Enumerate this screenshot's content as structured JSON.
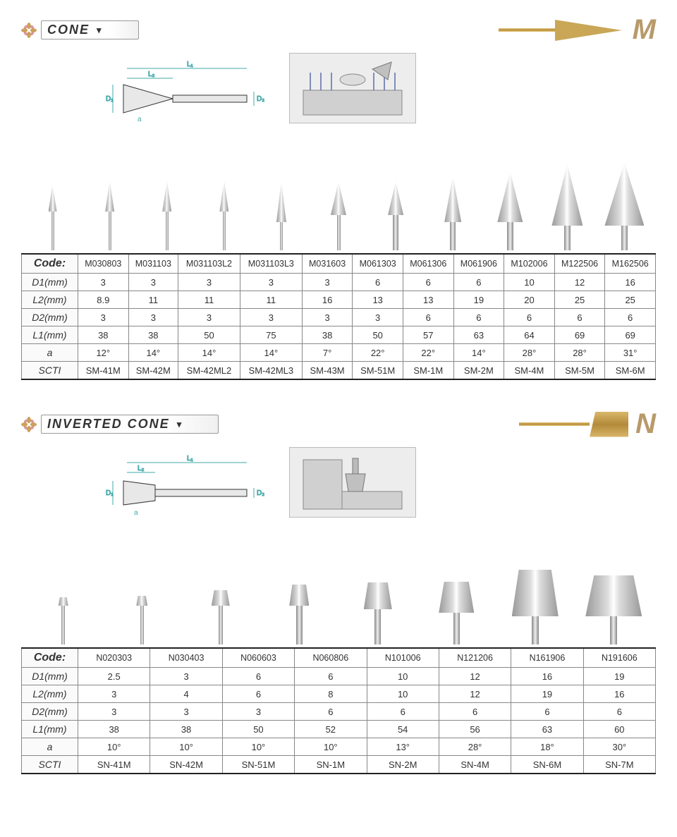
{
  "cone": {
    "title": "CONE",
    "letter": "M",
    "letter_color": "#b89a6a",
    "row_labels": [
      "Code:",
      "D1(mm)",
      "L2(mm)",
      "D2(mm)",
      "L1(mm)",
      "a",
      "SCTI"
    ],
    "dim_labels": {
      "L1": "L₁",
      "L2": "L₂",
      "D1": "D₁",
      "D2": "D₂",
      "a": "a"
    },
    "columns": [
      {
        "code": "M030803",
        "d1": "3",
        "l2": "8.9",
        "d2": "3",
        "l1": "38",
        "a": "12°",
        "scti": "SM-41M",
        "head_w": 12,
        "head_h": 38,
        "shank_w": 4,
        "shank_h": 55
      },
      {
        "code": "M031103",
        "d1": "3",
        "l2": "11",
        "d2": "3",
        "l1": "38",
        "a": "14°",
        "scti": "SM-42M",
        "head_w": 13,
        "head_h": 44,
        "shank_w": 4,
        "shank_h": 55
      },
      {
        "code": "M031103L2",
        "d1": "3",
        "l2": "11",
        "d2": "3",
        "l1": "50",
        "a": "14°",
        "scti": "SM-42ML2",
        "head_w": 13,
        "head_h": 44,
        "shank_w": 4,
        "shank_h": 55
      },
      {
        "code": "M031103L3",
        "d1": "3",
        "l2": "11",
        "d2": "3",
        "l1": "75",
        "a": "14°",
        "scti": "SM-42ML3",
        "head_w": 13,
        "head_h": 44,
        "shank_w": 4,
        "shank_h": 55
      },
      {
        "code": "M031603",
        "d1": "3",
        "l2": "16",
        "d2": "3",
        "l1": "38",
        "a": "7°",
        "scti": "SM-43M",
        "head_w": 14,
        "head_h": 58,
        "shank_w": 4,
        "shank_h": 40
      },
      {
        "code": "M061303",
        "d1": "6",
        "l2": "13",
        "d2": "3",
        "l1": "50",
        "a": "22°",
        "scti": "SM-51M",
        "head_w": 22,
        "head_h": 48,
        "shank_w": 5,
        "shank_h": 50
      },
      {
        "code": "M061306",
        "d1": "6",
        "l2": "13",
        "d2": "6",
        "l1": "57",
        "a": "22°",
        "scti": "SM-1M",
        "head_w": 22,
        "head_h": 48,
        "shank_w": 8,
        "shank_h": 50
      },
      {
        "code": "M061906",
        "d1": "6",
        "l2": "19",
        "d2": "6",
        "l1": "63",
        "a": "14°",
        "scti": "SM-2M",
        "head_w": 24,
        "head_h": 66,
        "shank_w": 8,
        "shank_h": 40
      },
      {
        "code": "M102006",
        "d1": "10",
        "l2": "20",
        "d2": "6",
        "l1": "64",
        "a": "28°",
        "scti": "SM-4M",
        "head_w": 36,
        "head_h": 72,
        "shank_w": 9,
        "shank_h": 40
      },
      {
        "code": "M122506",
        "d1": "12",
        "l2": "25",
        "d2": "6",
        "l1": "69",
        "a": "28°",
        "scti": "SM-5M",
        "head_w": 44,
        "head_h": 88,
        "shank_w": 9,
        "shank_h": 35
      },
      {
        "code": "M162506",
        "d1": "16",
        "l2": "25",
        "d2": "6",
        "l1": "69",
        "a": "31°",
        "scti": "SM-6M",
        "head_w": 56,
        "head_h": 90,
        "shank_w": 9,
        "shank_h": 35
      }
    ]
  },
  "invcone": {
    "title": "INVERTED CONE",
    "letter": "N",
    "letter_color": "#b89a6a",
    "row_labels": [
      "Code:",
      "D1(mm)",
      "L2(mm)",
      "D2(mm)",
      "L1(mm)",
      "a",
      "SCTI"
    ],
    "dim_labels": {
      "L1": "L₁",
      "L2": "L₂",
      "D1": "D₁",
      "D2": "D₂",
      "a": "a"
    },
    "columns": [
      {
        "code": "N020303",
        "d1": "2.5",
        "l2": "3",
        "d2": "3",
        "l1": "38",
        "a": "10°",
        "scti": "SN-41M",
        "head_w": 14,
        "head_h": 12,
        "shank_w": 5,
        "shank_h": 55
      },
      {
        "code": "N030403",
        "d1": "3",
        "l2": "4",
        "d2": "3",
        "l1": "38",
        "a": "10°",
        "scti": "SN-42M",
        "head_w": 16,
        "head_h": 14,
        "shank_w": 5,
        "shank_h": 55
      },
      {
        "code": "N060603",
        "d1": "6",
        "l2": "6",
        "d2": "3",
        "l1": "50",
        "a": "10°",
        "scti": "SN-51M",
        "head_w": 26,
        "head_h": 22,
        "shank_w": 6,
        "shank_h": 55
      },
      {
        "code": "N060806",
        "d1": "6",
        "l2": "8",
        "d2": "6",
        "l1": "52",
        "a": "10°",
        "scti": "SN-1M",
        "head_w": 28,
        "head_h": 30,
        "shank_w": 9,
        "shank_h": 55
      },
      {
        "code": "N101006",
        "d1": "10",
        "l2": "10",
        "d2": "6",
        "l1": "54",
        "a": "13°",
        "scti": "SN-2M",
        "head_w": 40,
        "head_h": 38,
        "shank_w": 9,
        "shank_h": 50
      },
      {
        "code": "N121206",
        "d1": "12",
        "l2": "12",
        "d2": "6",
        "l1": "56",
        "a": "28°",
        "scti": "SN-4M",
        "head_w": 50,
        "head_h": 44,
        "shank_w": 9,
        "shank_h": 45
      },
      {
        "code": "N161906",
        "d1": "16",
        "l2": "19",
        "d2": "6",
        "l1": "63",
        "a": "18°",
        "scti": "SN-6M",
        "head_w": 66,
        "head_h": 66,
        "shank_w": 10,
        "shank_h": 40
      },
      {
        "code": "N191606",
        "d1": "19",
        "l2": "16",
        "d2": "6",
        "l1": "60",
        "a": "30°",
        "scti": "SN-7M",
        "head_w": 80,
        "head_h": 58,
        "shank_w": 10,
        "shank_h": 40
      }
    ]
  },
  "colors": {
    "border": "#888888",
    "heavy_border": "#222222",
    "gold": "#c9a757",
    "steel_light": "#dddddd",
    "steel_dark": "#888888",
    "bg": "#ffffff"
  }
}
